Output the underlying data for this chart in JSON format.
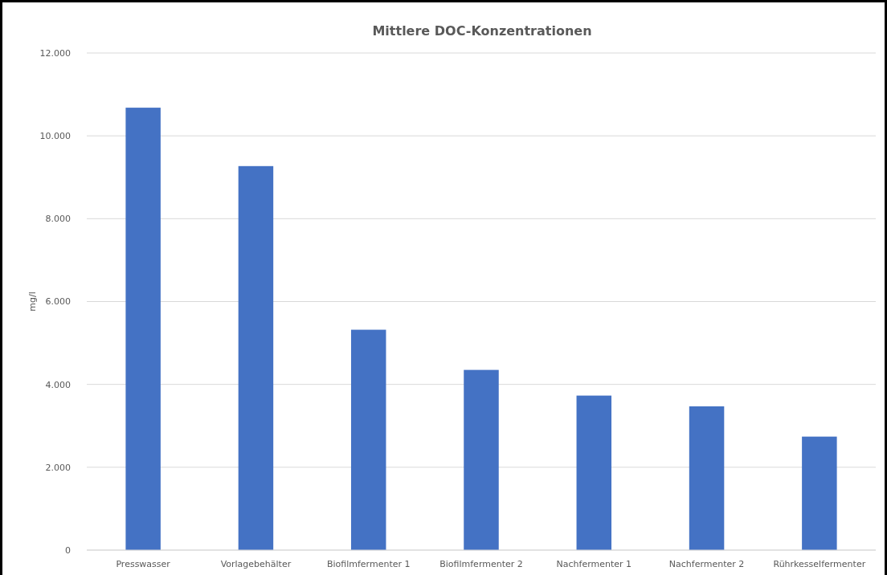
{
  "chart_data": {
    "type": "bar",
    "title": "Mittlere DOC-Konzentrationen",
    "ylabel": "mg/l",
    "categories": [
      "Presswasser",
      "Vorlagebehälter",
      "Biofilmfermenter 1",
      "Biofilmfermenter 2",
      "Nachfermenter 1",
      "Nachfermenter 2",
      "Rührkesselfermenter"
    ],
    "values": [
      10680,
      9270,
      5320,
      4350,
      3730,
      3470,
      2740
    ],
    "color": "#4472c4",
    "ylim": [
      0,
      12000
    ],
    "yticks": [
      0,
      {
        "value": 2000,
        "label": "2.000"
      },
      {
        "value": 4000,
        "label": "4.000"
      },
      {
        "value": 6000,
        "label": "6.000"
      },
      {
        "value": 8000,
        "label": "8.000"
      },
      {
        "value": 10000,
        "label": "10.000"
      },
      {
        "value": 12000,
        "label": "12.000"
      }
    ],
    "grid": "y"
  }
}
